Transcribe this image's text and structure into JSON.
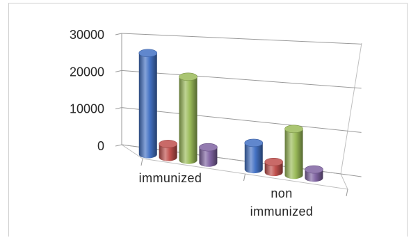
{
  "chart_data": {
    "type": "bar",
    "style": "3d-cylinder",
    "categories": [
      "immunized",
      "non immunized"
    ],
    "category_lines": [
      [
        "immunized"
      ],
      [
        "non",
        "immunized"
      ]
    ],
    "series": [
      {
        "color": "#4472C4",
        "values": [
          27000,
          6500
        ]
      },
      {
        "color": "#C0504D",
        "values": [
          3500,
          2500
        ]
      },
      {
        "color": "#9BBB59",
        "values": [
          21500,
          11000
        ]
      },
      {
        "color": "#8064A2",
        "values": [
          4000,
          2000
        ]
      }
    ],
    "yticks": [
      0,
      10000,
      20000,
      30000
    ],
    "ylim": [
      0,
      30000
    ],
    "grid": true,
    "legend": "none"
  }
}
